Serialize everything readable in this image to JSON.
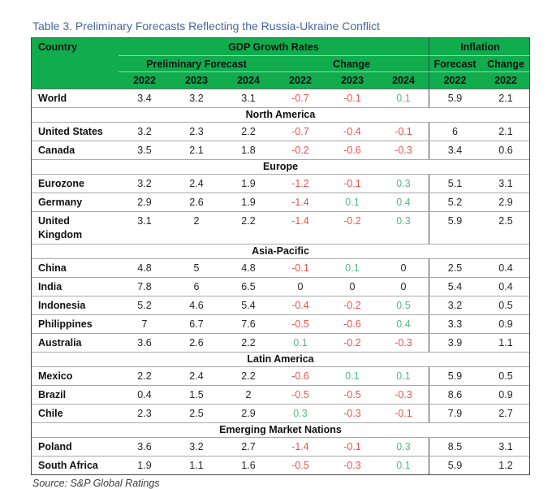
{
  "title": "Table 3. Preliminary Forecasts Reflecting the Russia-Ukraine Conflict",
  "source": "Source: S&P Global Ratings",
  "colors": {
    "header_green": "#10AC4E",
    "negative_red": "#E85450",
    "positive_green": "#56B881",
    "title_blue": "#44679C"
  },
  "table": {
    "header": {
      "country": "Country",
      "gdp_group": "GDP Growth Rates",
      "inflation_group": "Inflation",
      "preliminary_forecast": "Preliminary Forecast",
      "change": "Change",
      "inflation_forecast": "Forecast",
      "inflation_change": "Change",
      "years": [
        "2022",
        "2023",
        "2024",
        "2022",
        "2023",
        "2024",
        "2022",
        "2022"
      ]
    },
    "sections": [
      {
        "name": "",
        "rows": [
          {
            "country": "World",
            "values": [
              "3.4",
              "3.2",
              "3.1",
              "-0.7",
              "-0.1",
              "0.1",
              "5.9",
              "2.1"
            ]
          }
        ]
      },
      {
        "name": "North America",
        "rows": [
          {
            "country": "United States",
            "values": [
              "3.2",
              "2.3",
              "2.2",
              "-0.7",
              "-0.4",
              "-0.1",
              "6",
              "2.1"
            ]
          },
          {
            "country": "Canada",
            "values": [
              "3.5",
              "2.1",
              "1.8",
              "-0.2",
              "-0.6",
              "-0.3",
              "3.4",
              "0.6"
            ]
          }
        ]
      },
      {
        "name": "Europe",
        "rows": [
          {
            "country": "Eurozone",
            "values": [
              "3.2",
              "2.4",
              "1.9",
              "-1.2",
              "-0.1",
              "0.3",
              "5.1",
              "3.1"
            ]
          },
          {
            "country": "Germany",
            "values": [
              "2.9",
              "2.6",
              "1.9",
              "-1.4",
              "0.1",
              "0.4",
              "5.2",
              "2.9"
            ]
          },
          {
            "country": "United Kingdom",
            "values": [
              "3.1",
              "2",
              "2.2",
              "-1.4",
              "-0.2",
              "0.3",
              "5.9",
              "2.5"
            ]
          }
        ]
      },
      {
        "name": "Asia-Pacific",
        "rows": [
          {
            "country": "China",
            "values": [
              "4.8",
              "5",
              "4.8",
              "-0.1",
              "0.1",
              "0",
              "2.5",
              "0.4"
            ]
          },
          {
            "country": "India",
            "values": [
              "7.8",
              "6",
              "6.5",
              "0",
              "0",
              "0",
              "5.4",
              "0.4"
            ]
          },
          {
            "country": "Indonesia",
            "values": [
              "5.2",
              "4.6",
              "5.4",
              "-0.4",
              "-0.2",
              "0.5",
              "3.2",
              "0.5"
            ]
          },
          {
            "country": "Philippines",
            "values": [
              "7",
              "6.7",
              "7.6",
              "-0.5",
              "-0.6",
              "0.4",
              "3.3",
              "0.9"
            ]
          },
          {
            "country": "Australia",
            "values": [
              "3.6",
              "2.6",
              "2.2",
              "0.1",
              "-0.2",
              "-0.3",
              "3.9",
              "1.1"
            ]
          }
        ]
      },
      {
        "name": "Latin America",
        "rows": [
          {
            "country": "Mexico",
            "values": [
              "2.2",
              "2.4",
              "2.2",
              "-0.6",
              "0.1",
              "0.1",
              "5.9",
              "0.5"
            ]
          },
          {
            "country": "Brazil",
            "values": [
              "0.4",
              "1.5",
              "2",
              "-0.5",
              "-0.5",
              "-0.3",
              "8.6",
              "0.9"
            ]
          },
          {
            "country": "Chile",
            "values": [
              "2.3",
              "2.5",
              "2.9",
              "0.3",
              "-0.3",
              "-0.1",
              "7.9",
              "2.7"
            ]
          }
        ]
      },
      {
        "name": "Emerging Market Nations",
        "rows": [
          {
            "country": "Poland",
            "values": [
              "3.6",
              "3.2",
              "2.7",
              "-1.4",
              "-0.1",
              "0.3",
              "8.5",
              "3.1"
            ]
          },
          {
            "country": "South Africa",
            "values": [
              "1.9",
              "1.1",
              "1.6",
              "-0.5",
              "-0.3",
              "0.1",
              "5.9",
              "1.2"
            ]
          }
        ]
      }
    ]
  }
}
